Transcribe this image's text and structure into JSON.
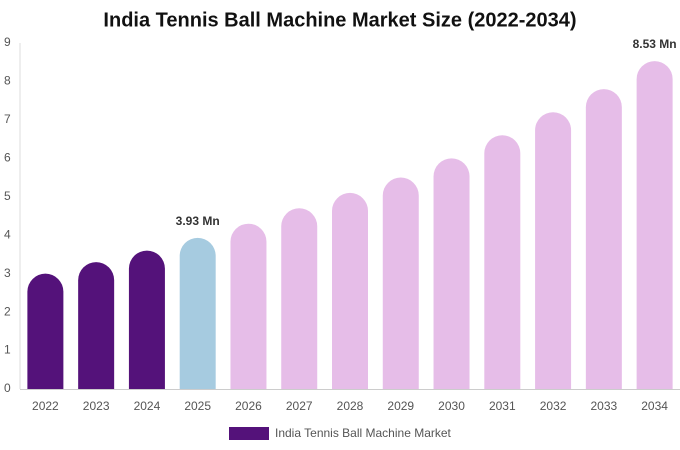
{
  "chart_data": {
    "type": "bar",
    "title": "India Tennis Ball Machine Market Size (2022-2034)",
    "categories": [
      "2022",
      "2023",
      "2024",
      "2025",
      "2026",
      "2027",
      "2028",
      "2029",
      "2030",
      "2031",
      "2032",
      "2033",
      "2034"
    ],
    "series": [
      {
        "name": "India Tennis Ball Machine Market",
        "color": "#54127a",
        "colors": [
          "#54127a",
          "#54127a",
          "#54127a",
          "#a6cbe0",
          "#e6bde8",
          "#e6bde8",
          "#e6bde8",
          "#e6bde8",
          "#e6bde8",
          "#e6bde8",
          "#e6bde8",
          "#e6bde8",
          "#e6bde8"
        ],
        "values": [
          3.0,
          3.3,
          3.6,
          3.93,
          4.3,
          4.7,
          5.1,
          5.5,
          6.0,
          6.6,
          7.2,
          7.8,
          8.53
        ],
        "value_labels": [
          null,
          null,
          null,
          "3.93 Mn",
          null,
          null,
          null,
          null,
          null,
          null,
          null,
          null,
          "8.53 Mn"
        ]
      }
    ],
    "ylim": [
      0,
      9
    ],
    "yticks": [
      0,
      1,
      2,
      3,
      4,
      5,
      6,
      7,
      8,
      9
    ],
    "grid": false
  }
}
